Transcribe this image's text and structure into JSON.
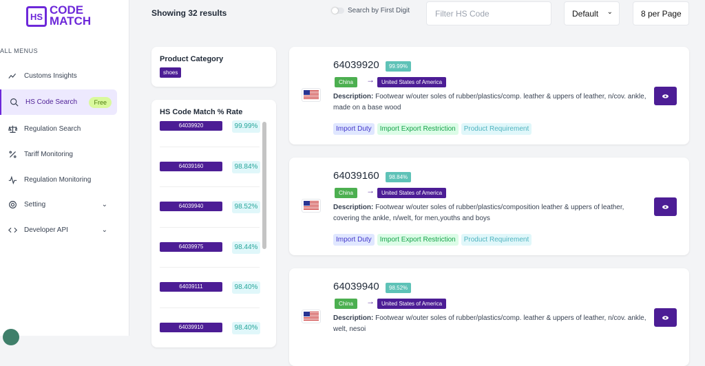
{
  "logo": {
    "icon": "HS",
    "line1": "CODE",
    "line2": "MATCH"
  },
  "menu": {
    "heading": "ALL MENUS",
    "items": [
      {
        "label": "Customs Insights"
      },
      {
        "label": "HS Code Search",
        "badge": "Free"
      },
      {
        "label": "Regulation Search"
      },
      {
        "label": "Tariff Monitoring"
      },
      {
        "label": "Regulation Monitoring"
      },
      {
        "label": "Setting"
      },
      {
        "label": "Developer API"
      }
    ]
  },
  "toolbar": {
    "results": "Showing 32 results",
    "toggle": "Search by First Digit",
    "filter_placeholder": "Filter HS Code",
    "sort": "Default",
    "per_page": "8 per Page"
  },
  "category": {
    "title": "Product Category",
    "tag": "shoes"
  },
  "match": {
    "title": "HS Code Match % Rate",
    "rows": [
      [
        "64039920",
        "99.99%"
      ],
      [
        "64039160",
        "98.84%"
      ],
      [
        "64039940",
        "98.52%"
      ],
      [
        "64039975",
        "98.44%"
      ],
      [
        "64039111",
        "98.40%"
      ],
      [
        "64039910",
        "98.40%"
      ]
    ]
  },
  "results": [
    {
      "code": "64039920",
      "rate": "99.99%",
      "origin": "China",
      "destination": "United States of America",
      "desc_label": "Description:",
      "desc": "Footwear w/outer soles of rubber/plastics/comp. leather & uppers of leather, n/cov. ankle, made on a base wood",
      "tags": [
        "Import Duty",
        "Import Export Restriction",
        "Product Requirement"
      ]
    },
    {
      "code": "64039160",
      "rate": "98.84%",
      "origin": "China",
      "destination": "United States of America",
      "desc_label": "Description:",
      "desc": "Footwear w/outer soles of rubber/plastics/composition leather & uppers of leather, covering the ankle, n/welt, for men,youths and boys",
      "tags": [
        "Import Duty",
        "Import Export Restriction",
        "Product Requirement"
      ]
    },
    {
      "code": "64039940",
      "rate": "98.52%",
      "origin": "China",
      "destination": "United States of America",
      "desc_label": "Description:",
      "desc": "Footwear w/outer soles of rubber/plastics/comp. leather & uppers of leather, n/cov. ankle, welt, nesoi",
      "tags": []
    }
  ]
}
